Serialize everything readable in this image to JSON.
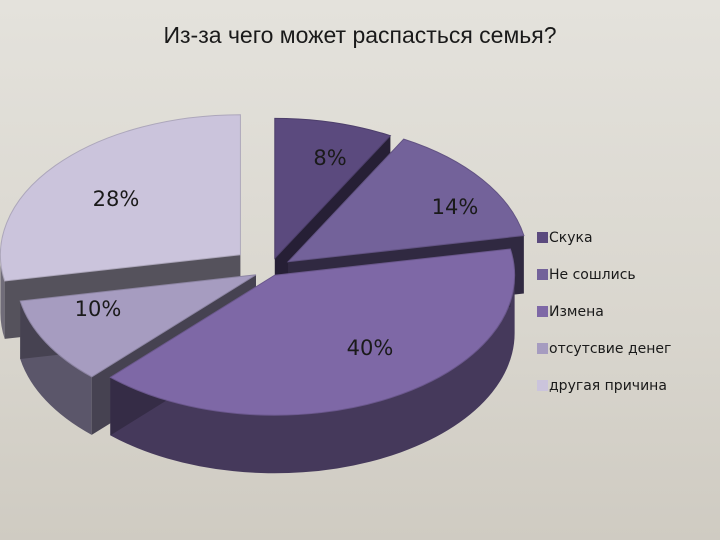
{
  "chart_data": {
    "type": "pie",
    "title": "Из-за чего может распасться семья?",
    "categories": [
      "Скука",
      "Не сошлись",
      "Измена",
      "отсутсвие денег",
      "другая причина"
    ],
    "values": [
      8,
      14,
      40,
      10,
      28
    ],
    "value_labels": [
      "8%",
      "14%",
      "40%",
      "10%",
      "28%"
    ],
    "colors": [
      "#5b4a7e",
      "#73629a",
      "#7e68a6",
      "#a69cc0",
      "#cbc4dc"
    ],
    "style": "3d-exploded",
    "legend_position": "right"
  }
}
